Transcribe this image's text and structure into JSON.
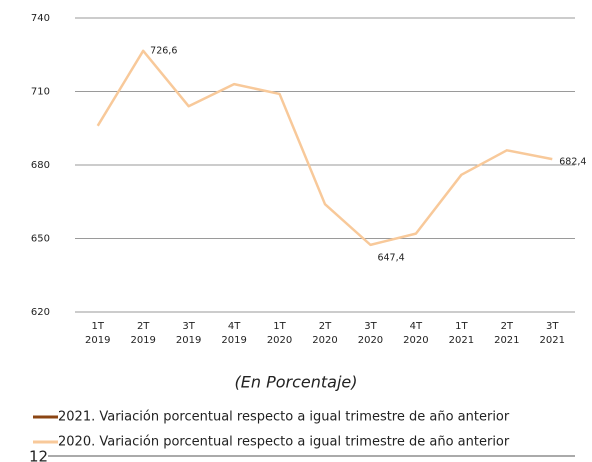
{
  "chart_data": {
    "type": "line",
    "categories": [
      [
        "1T",
        "2019"
      ],
      [
        "2T",
        "2019"
      ],
      [
        "3T",
        "2019"
      ],
      [
        "4T",
        "2019"
      ],
      [
        "1T",
        "2020"
      ],
      [
        "2T",
        "2020"
      ],
      [
        "3T",
        "2020"
      ],
      [
        "4T",
        "2020"
      ],
      [
        "1T",
        "2021"
      ],
      [
        "2T",
        "2021"
      ],
      [
        "3T",
        "2021"
      ]
    ],
    "series": [
      {
        "name": "2021. Variación porcentual respecto a igual trimestre de año anterior",
        "color": "#8b4513",
        "values": [
          null,
          null,
          null,
          null,
          null,
          null,
          null,
          null,
          null,
          null,
          null
        ]
      },
      {
        "name": "2020. Variación porcentual respecto a igual trimestre de año anterior",
        "color": "#f8c99a",
        "values": [
          696,
          726.6,
          704,
          713,
          709,
          664,
          647.4,
          652,
          676,
          686,
          682.4
        ],
        "value_labels": [
          null,
          "726,6",
          null,
          null,
          null,
          null,
          "647,4",
          null,
          null,
          null,
          "682,4"
        ]
      }
    ],
    "ylim": [
      620,
      740
    ],
    "yticks": [
      620,
      650,
      680,
      710,
      740
    ],
    "grid": true,
    "subtitle": "(En Porcentaje)"
  },
  "page_number": "12"
}
